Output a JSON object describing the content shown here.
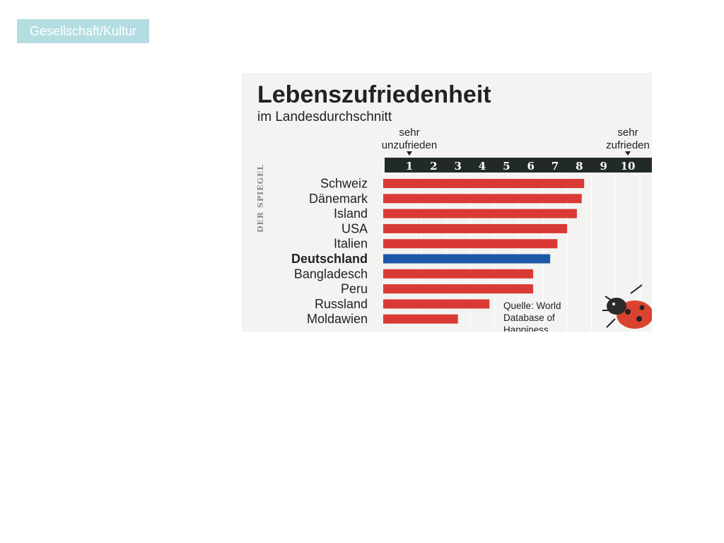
{
  "header": {
    "tag_label": "Gesellschaft/Kultur"
  },
  "chart_data": {
    "type": "bar",
    "orientation": "horizontal",
    "title": "Lebenszufriedenheit",
    "subtitle": "im Landesdurchschnitt",
    "axis_low_label": [
      "sehr",
      "unzufrieden"
    ],
    "axis_high_label": [
      "sehr",
      "zufrieden"
    ],
    "scale": [
      1,
      2,
      3,
      4,
      5,
      6,
      7,
      8,
      9,
      10
    ],
    "xlim": [
      0,
      10
    ],
    "categories": [
      "Schweiz",
      "Dänemark",
      "Island",
      "USA",
      "Italien",
      "Deutschland",
      "Bangladesch",
      "Peru",
      "Russland",
      "Moldawien"
    ],
    "values": [
      8.2,
      8.1,
      7.9,
      7.5,
      7.1,
      6.8,
      6.1,
      6.1,
      4.3,
      3.0
    ],
    "highlight": "Deutschland",
    "colors": {
      "bar": "#d93a36",
      "highlight": "#1d57a8",
      "scale_band": "#222a27"
    },
    "source": [
      "Quelle: World",
      "Database of",
      "Happiness"
    ],
    "watermark": "DER SPIEGEL"
  }
}
